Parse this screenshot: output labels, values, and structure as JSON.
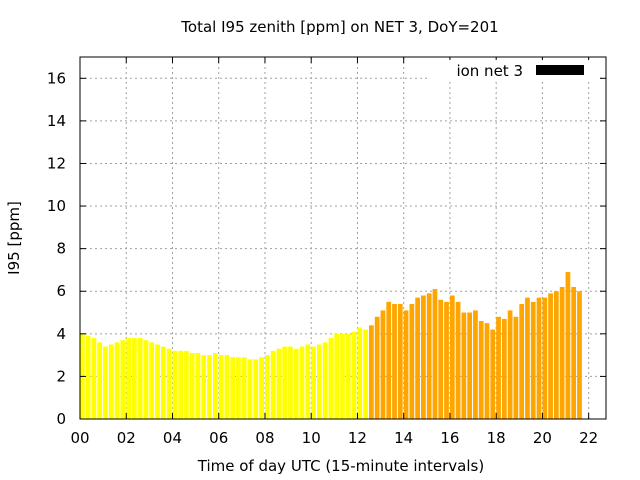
{
  "chart_data": {
    "type": "bar",
    "title": "Total I95 zenith [ppm] on NET 3, DoY=201",
    "xlabel": "Time of day UTC (15-minute intervals)",
    "ylabel": "I95 [ppm]",
    "xlim": [
      0,
      22.75
    ],
    "ylim": [
      0,
      17
    ],
    "x_ticks": [
      "00",
      "02",
      "04",
      "06",
      "08",
      "10",
      "12",
      "14",
      "16",
      "18",
      "20",
      "22"
    ],
    "y_ticks": [
      "0",
      "2",
      "4",
      "6",
      "8",
      "10",
      "12",
      "14",
      "16"
    ],
    "grid": true,
    "legend": {
      "placement": "top-right",
      "label": "ion net 3",
      "color": "#000000"
    },
    "series": [
      {
        "name": "ion net 3",
        "x_start": 0,
        "x_step_hours": 0.25,
        "colors": {
          "first_segment": "#ffff00",
          "second_segment": "#ffa500"
        },
        "color_switch_hour": 12.5,
        "values": [
          4.0,
          3.9,
          3.8,
          3.6,
          3.4,
          3.5,
          3.6,
          3.7,
          3.8,
          3.8,
          3.8,
          3.7,
          3.6,
          3.5,
          3.4,
          3.3,
          3.2,
          3.2,
          3.2,
          3.1,
          3.1,
          3.0,
          3.0,
          3.1,
          3.0,
          3.0,
          2.9,
          2.9,
          2.9,
          2.8,
          2.8,
          2.9,
          3.0,
          3.2,
          3.3,
          3.4,
          3.4,
          3.3,
          3.4,
          3.5,
          3.4,
          3.5,
          3.6,
          3.8,
          4.0,
          4.0,
          4.0,
          4.1,
          4.3,
          4.2,
          4.4,
          4.8,
          5.1,
          5.5,
          5.4,
          5.4,
          5.1,
          5.4,
          5.7,
          5.8,
          5.9,
          6.1,
          5.6,
          5.5,
          5.8,
          5.5,
          5.0,
          5.0,
          5.1,
          4.6,
          4.5,
          4.2,
          4.8,
          4.7,
          5.1,
          4.8,
          5.4,
          5.7,
          5.5,
          5.7,
          5.7,
          5.9,
          6.0,
          6.2,
          6.9,
          6.2,
          6.0
        ]
      }
    ]
  }
}
